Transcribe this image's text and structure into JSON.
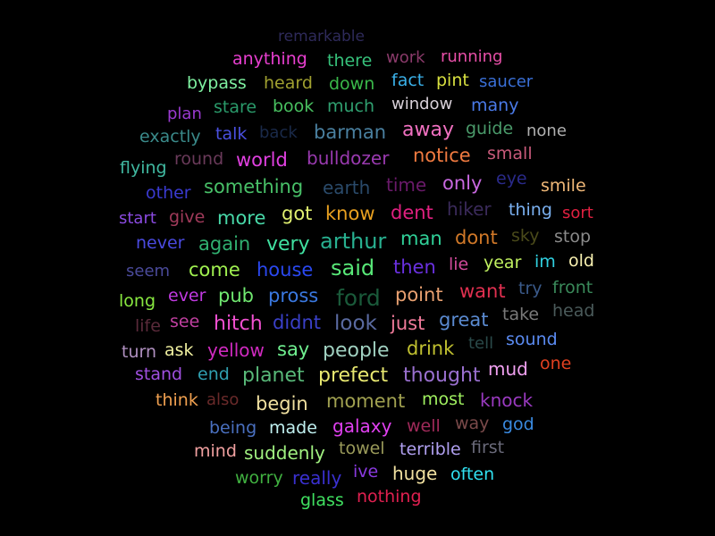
{
  "background": "#000000",
  "words": [
    {
      "text": "remarkable",
      "color": "#2e2a5a"
    },
    {
      "text": "anything",
      "color": "#e83fd0"
    },
    {
      "text": "there",
      "color": "#36c07a"
    },
    {
      "text": "work",
      "color": "#8a3a6a"
    },
    {
      "text": "running",
      "color": "#e84fa8"
    },
    {
      "text": "bypass",
      "color": "#7ef0a0"
    },
    {
      "text": "heard",
      "color": "#a0a030"
    },
    {
      "text": "down",
      "color": "#3ab84a"
    },
    {
      "text": "fact",
      "color": "#3ab0e8"
    },
    {
      "text": "pint",
      "color": "#d8e040"
    },
    {
      "text": "saucer",
      "color": "#3a70d8"
    },
    {
      "text": "plan",
      "color": "#9a3ad0"
    },
    {
      "text": "stare",
      "color": "#2a9a6a"
    },
    {
      "text": "book",
      "color": "#48c060"
    },
    {
      "text": "much",
      "color": "#30a070"
    },
    {
      "text": "window",
      "color": "#d8d0d8"
    },
    {
      "text": "many",
      "color": "#4a7ae8"
    },
    {
      "text": "exactly",
      "color": "#3a8a8a"
    },
    {
      "text": "talk",
      "color": "#4a50e0"
    },
    {
      "text": "back",
      "color": "#1a2a4a"
    },
    {
      "text": "barman",
      "color": "#4a80a0"
    },
    {
      "text": "away",
      "color": "#f070c0"
    },
    {
      "text": "guide",
      "color": "#4a9a6a"
    },
    {
      "text": "none",
      "color": "#b0b0b0"
    },
    {
      "text": "flying",
      "color": "#40b8a0"
    },
    {
      "text": "round",
      "color": "#6a3a5a"
    },
    {
      "text": "world",
      "color": "#e040e0"
    },
    {
      "text": "bulldozer",
      "color": "#9a3ab0"
    },
    {
      "text": "notice",
      "color": "#f07a40"
    },
    {
      "text": "small",
      "color": "#c85a7a"
    },
    {
      "text": "other",
      "color": "#3a3ad0"
    },
    {
      "text": "something",
      "color": "#48c068"
    },
    {
      "text": "earth",
      "color": "#2a4a6a"
    },
    {
      "text": "time",
      "color": "#6a1a6a"
    },
    {
      "text": "only",
      "color": "#c868e0"
    },
    {
      "text": "eye",
      "color": "#2a2a8a"
    },
    {
      "text": "smile",
      "color": "#f0b878"
    },
    {
      "text": "start",
      "color": "#8a4ae0"
    },
    {
      "text": "give",
      "color": "#a03a5a"
    },
    {
      "text": "more",
      "color": "#48d8a8"
    },
    {
      "text": "got",
      "color": "#e0f070"
    },
    {
      "text": "know",
      "color": "#e8a020"
    },
    {
      "text": "dent",
      "color": "#e02080"
    },
    {
      "text": "hiker",
      "color": "#3a2a5a"
    },
    {
      "text": "thing",
      "color": "#7ab0f0"
    },
    {
      "text": "sort",
      "color": "#e02040"
    },
    {
      "text": "never",
      "color": "#4a4ae0"
    },
    {
      "text": "again",
      "color": "#30b070"
    },
    {
      "text": "very",
      "color": "#40e0a0"
    },
    {
      "text": "arthur",
      "color": "#28b090"
    },
    {
      "text": "man",
      "color": "#30d098"
    },
    {
      "text": "dont",
      "color": "#d07828"
    },
    {
      "text": "sky",
      "color": "#4a4a1a"
    },
    {
      "text": "stop",
      "color": "#8a8a8a"
    },
    {
      "text": "seem",
      "color": "#4a4a9a"
    },
    {
      "text": "come",
      "color": "#a0f050"
    },
    {
      "text": "house",
      "color": "#2a48f0"
    },
    {
      "text": "said",
      "color": "#58e878"
    },
    {
      "text": "then",
      "color": "#6a30e0"
    },
    {
      "text": "lie",
      "color": "#d04a9a"
    },
    {
      "text": "year",
      "color": "#c0f060"
    },
    {
      "text": "im",
      "color": "#30d0e0"
    },
    {
      "text": "old",
      "color": "#f8f0b0"
    },
    {
      "text": "long",
      "color": "#88e840"
    },
    {
      "text": "ever",
      "color": "#c03ae0"
    },
    {
      "text": "pub",
      "color": "#70e870"
    },
    {
      "text": "pross",
      "color": "#3a78e0"
    },
    {
      "text": "ford",
      "color": "#1a5a3a"
    },
    {
      "text": "point",
      "color": "#e8a070"
    },
    {
      "text": "want",
      "color": "#e03050"
    },
    {
      "text": "try",
      "color": "#3a5a8a"
    },
    {
      "text": "front",
      "color": "#3a8a5a"
    },
    {
      "text": "life",
      "color": "#5a2a3a"
    },
    {
      "text": "see",
      "color": "#c040a0"
    },
    {
      "text": "hitch",
      "color": "#f050d0"
    },
    {
      "text": "didnt",
      "color": "#3a40c8"
    },
    {
      "text": "look",
      "color": "#5a6aa0"
    },
    {
      "text": "just",
      "color": "#f07a9a"
    },
    {
      "text": "great",
      "color": "#5a8ad0"
    },
    {
      "text": "take",
      "color": "#7a7a7a"
    },
    {
      "text": "head",
      "color": "#4a5a5a"
    },
    {
      "text": "turn",
      "color": "#b090c0"
    },
    {
      "text": "ask",
      "color": "#f0f0a0"
    },
    {
      "text": "yellow",
      "color": "#d02ac0"
    },
    {
      "text": "say",
      "color": "#70f090"
    },
    {
      "text": "people",
      "color": "#a0d0c0"
    },
    {
      "text": "drink",
      "color": "#c0c030"
    },
    {
      "text": "tell",
      "color": "#2a4a4a"
    },
    {
      "text": "sound",
      "color": "#5a8af0"
    },
    {
      "text": "stand",
      "color": "#a050e0"
    },
    {
      "text": "end",
      "color": "#30a0b0"
    },
    {
      "text": "planet",
      "color": "#58b878"
    },
    {
      "text": "prefect",
      "color": "#e8e870"
    },
    {
      "text": "thought",
      "color": "#9a70d0"
    },
    {
      "text": "mud",
      "color": "#f0a0f0"
    },
    {
      "text": "one",
      "color": "#e04020"
    },
    {
      "text": "think",
      "color": "#f0a050"
    },
    {
      "text": "also",
      "color": "#6a2a2a"
    },
    {
      "text": "begin",
      "color": "#f0e0a0"
    },
    {
      "text": "moment",
      "color": "#a0a050"
    },
    {
      "text": "most",
      "color": "#a0f060"
    },
    {
      "text": "knock",
      "color": "#9a3ac0"
    },
    {
      "text": "being",
      "color": "#4a70c0"
    },
    {
      "text": "made",
      "color": "#c0f0f0"
    },
    {
      "text": "galaxy",
      "color": "#e040f0"
    },
    {
      "text": "well",
      "color": "#a02a5a"
    },
    {
      "text": "way",
      "color": "#7a4a4a"
    },
    {
      "text": "god",
      "color": "#3a8ae0"
    },
    {
      "text": "mind",
      "color": "#f0a0a0"
    },
    {
      "text": "suddenly",
      "color": "#a0f080"
    },
    {
      "text": "towel",
      "color": "#9a9a5a"
    },
    {
      "text": "terrible",
      "color": "#b0a0f0"
    },
    {
      "text": "first",
      "color": "#6a6a7a"
    },
    {
      "text": "worry",
      "color": "#40b040"
    },
    {
      "text": "really",
      "color": "#3a30d0"
    },
    {
      "text": "ive",
      "color": "#8a3ae0"
    },
    {
      "text": "huge",
      "color": "#f0e0a0"
    },
    {
      "text": "often",
      "color": "#30e0f0"
    },
    {
      "text": "glass",
      "color": "#40e060"
    },
    {
      "text": "nothing",
      "color": "#e02050"
    }
  ]
}
